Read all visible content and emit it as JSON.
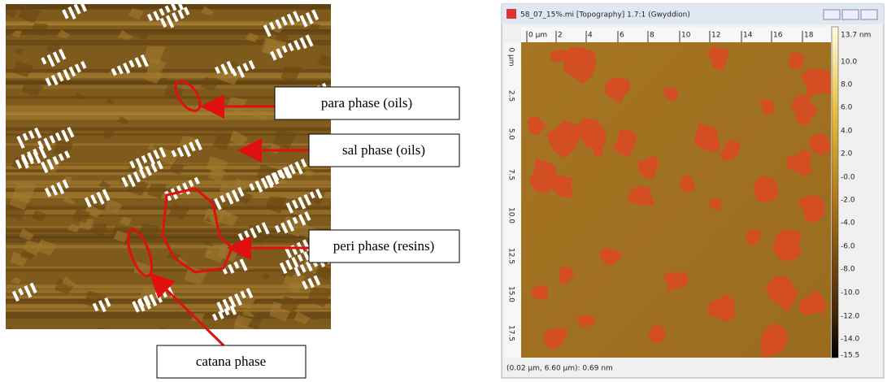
{
  "left_figure": {
    "labels": [
      "para phase (oils)",
      "sal phase (oils)",
      "peri phase (resins)",
      "catana phase"
    ]
  },
  "window": {
    "title": "58_07_15%.mi [Topography] 1.7:1 (Gwyddion)",
    "x_ruler": [
      "0 µm",
      "2",
      "4",
      "6",
      "8",
      "10",
      "12",
      "14",
      "16",
      "18"
    ],
    "y_ruler": [
      "0 µm",
      "2.5",
      "5.0",
      "7.5",
      "10.0",
      "12.5",
      "15.0",
      "17.5"
    ],
    "color_scale": [
      "13.7 nm",
      "10.0",
      "8.0",
      "6.0",
      "4.0",
      "2.0",
      "-0.0",
      "-2.0",
      "-4.0",
      "-6.0",
      "-8.0",
      "-10.0",
      "-12.0",
      "-14.0",
      "-15.5"
    ],
    "status": "(0.02 µm, 6.60 µm): 0.69 nm"
  }
}
